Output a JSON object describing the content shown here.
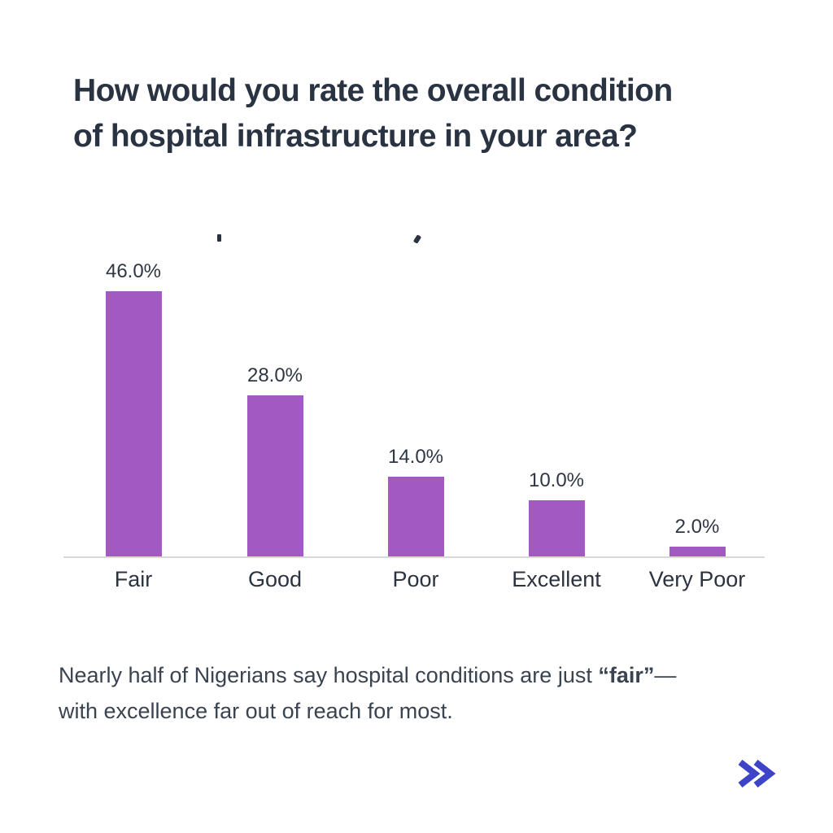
{
  "header": {
    "title_lines": [
      "How would you rate the overall condition",
      "of hospital infrastructure in your area?"
    ],
    "title_color": "#2a3342"
  },
  "chart_data": {
    "type": "bar",
    "title": "",
    "title_cropped_fragments_visible": true,
    "categories": [
      "Fair",
      "Good",
      "Poor",
      "Excellent",
      "Very Poor"
    ],
    "values": [
      46.0,
      28.0,
      14.0,
      10.0,
      2.0
    ],
    "value_labels": [
      "46.0%",
      "28.0%",
      "14.0%",
      "10.0%",
      "2.0%"
    ],
    "unit": "%",
    "ylim": [
      0,
      50
    ],
    "grid": false,
    "legend": false,
    "bar_color": "#a25ac2",
    "axis_line_color": "#d8d8d8",
    "label_color": "#2e3644"
  },
  "caption": {
    "text_before": "Nearly half of Nigerians say hospital conditions are just ",
    "highlight": "“fair”",
    "dash": "—",
    "line2": "with excellence far out of reach for most."
  },
  "footer": {
    "next_icon": "double-chevron-right",
    "next_icon_color": "#3e44c8"
  },
  "colors": {
    "background": "#ffffff",
    "caption_text": "#3a4350"
  }
}
